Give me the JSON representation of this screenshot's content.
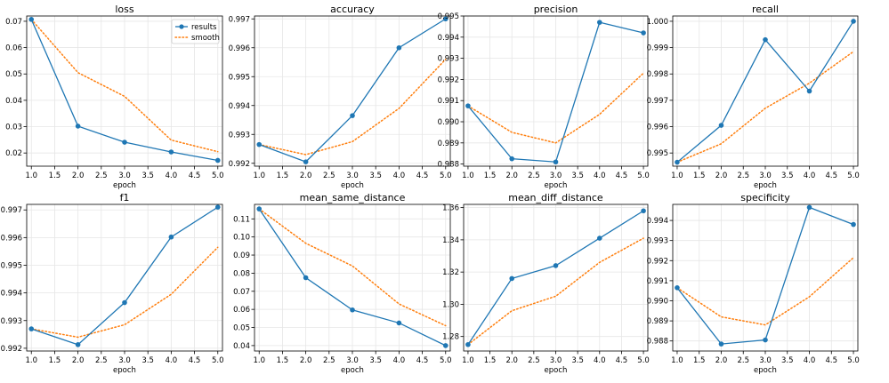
{
  "chart_data": [
    {
      "type": "line",
      "title": "loss",
      "xlabel": "epoch",
      "x": [
        1,
        2,
        3,
        4,
        5
      ],
      "xticks": [
        "1.0",
        "1.5",
        "2.0",
        "2.5",
        "3.0",
        "3.5",
        "4.0",
        "4.5",
        "5.0"
      ],
      "ylim": [
        0.015,
        0.072
      ],
      "yticks": [
        "0.02",
        "0.03",
        "0.04",
        "0.05",
        "0.06",
        "0.07"
      ],
      "legend": "top-right",
      "series": [
        {
          "name": "results",
          "values": [
            0.0707,
            0.0302,
            0.0241,
            0.0204,
            0.0172
          ]
        },
        {
          "name": "smooth",
          "values": [
            0.0707,
            0.0505,
            0.0415,
            0.0249,
            0.0205
          ]
        }
      ]
    },
    {
      "type": "line",
      "title": "accuracy",
      "xlabel": "epoch",
      "x": [
        1,
        2,
        3,
        4,
        5
      ],
      "xticks": [
        "1.0",
        "1.5",
        "2.0",
        "2.5",
        "3.0",
        "3.5",
        "4.0",
        "4.5",
        "5.0"
      ],
      "ylim": [
        0.9919,
        0.9971
      ],
      "yticks": [
        "0.992",
        "0.993",
        "0.994",
        "0.995",
        "0.996",
        "0.997"
      ],
      "series": [
        {
          "name": "results",
          "values": [
            0.99265,
            0.99205,
            0.99365,
            0.996,
            0.997
          ]
        },
        {
          "name": "smooth",
          "values": [
            0.99265,
            0.9923,
            0.99275,
            0.9939,
            0.9956
          ]
        }
      ]
    },
    {
      "type": "line",
      "title": "precision",
      "xlabel": "epoch",
      "x": [
        1,
        2,
        3,
        4,
        5
      ],
      "xticks": [
        "1.0",
        "1.5",
        "2.0",
        "2.5",
        "3.0",
        "3.5",
        "4.0",
        "4.5",
        "5.0"
      ],
      "ylim": [
        0.9879,
        0.995
      ],
      "yticks": [
        "0.988",
        "0.989",
        "0.990",
        "0.991",
        "0.992",
        "0.993",
        "0.994",
        "0.995"
      ],
      "series": [
        {
          "name": "results",
          "values": [
            0.99075,
            0.98825,
            0.9881,
            0.9947,
            0.9942
          ]
        },
        {
          "name": "smooth",
          "values": [
            0.99075,
            0.9895,
            0.989,
            0.99035,
            0.9923
          ]
        }
      ]
    },
    {
      "type": "line",
      "title": "recall",
      "xlabel": "epoch",
      "x": [
        1,
        2,
        3,
        4,
        5
      ],
      "xticks": [
        "1.0",
        "1.5",
        "2.0",
        "2.5",
        "3.0",
        "3.5",
        "4.0",
        "4.5",
        "5.0"
      ],
      "ylim": [
        0.9945,
        1.0002
      ],
      "yticks": [
        "0.995",
        "0.996",
        "0.997",
        "0.998",
        "0.999",
        "1.000"
      ],
      "series": [
        {
          "name": "results",
          "values": [
            0.99465,
            0.99605,
            0.9993,
            0.99735,
            1.0
          ]
        },
        {
          "name": "smooth",
          "values": [
            0.99465,
            0.99535,
            0.9967,
            0.99765,
            0.99885
          ]
        }
      ]
    },
    {
      "type": "line",
      "title": "f1",
      "xlabel": "epoch",
      "x": [
        1,
        2,
        3,
        4,
        5
      ],
      "xticks": [
        "1.0",
        "1.5",
        "2.0",
        "2.5",
        "3.0",
        "3.5",
        "4.0",
        "4.5",
        "5.0"
      ],
      "ylim": [
        0.9919,
        0.9972
      ],
      "yticks": [
        "0.992",
        "0.993",
        "0.994",
        "0.995",
        "0.996",
        "0.997"
      ],
      "series": [
        {
          "name": "results",
          "values": [
            0.9927,
            0.99213,
            0.99365,
            0.99602,
            0.9971
          ]
        },
        {
          "name": "smooth",
          "values": [
            0.9927,
            0.9924,
            0.99285,
            0.99395,
            0.99565
          ]
        }
      ]
    },
    {
      "type": "line",
      "title": "mean_same_distance",
      "xlabel": "epoch",
      "x": [
        1,
        2,
        3,
        4,
        5
      ],
      "xticks": [
        "1.0",
        "1.5",
        "2.0",
        "2.5",
        "3.0",
        "3.5",
        "4.0",
        "4.5",
        "5.0"
      ],
      "ylim": [
        0.037,
        0.118
      ],
      "yticks": [
        "0.04",
        "0.05",
        "0.06",
        "0.07",
        "0.08",
        "0.09",
        "0.10",
        "0.11"
      ],
      "series": [
        {
          "name": "results",
          "values": [
            0.1155,
            0.0775,
            0.0597,
            0.0525,
            0.04
          ]
        },
        {
          "name": "smooth",
          "values": [
            0.1155,
            0.0965,
            0.084,
            0.063,
            0.051
          ]
        }
      ]
    },
    {
      "type": "line",
      "title": "mean_diff_distance",
      "xlabel": "epoch",
      "x": [
        1,
        2,
        3,
        4,
        5
      ],
      "xticks": [
        "1.0",
        "1.5",
        "2.0",
        "2.5",
        "3.0",
        "3.5",
        "4.0",
        "4.5",
        "5.0"
      ],
      "ylim": [
        1.271,
        1.362
      ],
      "yticks": [
        "1.28",
        "1.30",
        "1.32",
        "1.34",
        "1.36"
      ],
      "series": [
        {
          "name": "results",
          "values": [
            1.275,
            1.316,
            1.324,
            1.341,
            1.358
          ]
        },
        {
          "name": "smooth",
          "values": [
            1.275,
            1.296,
            1.305,
            1.326,
            1.341
          ]
        }
      ]
    },
    {
      "type": "line",
      "title": "specificity",
      "xlabel": "epoch",
      "x": [
        1,
        2,
        3,
        4,
        5
      ],
      "xticks": [
        "1.0",
        "1.5",
        "2.0",
        "2.5",
        "3.0",
        "3.5",
        "4.0",
        "4.5",
        "5.0"
      ],
      "ylim": [
        0.9875,
        0.9948
      ],
      "yticks": [
        "0.988",
        "0.989",
        "0.990",
        "0.991",
        "0.992",
        "0.993",
        "0.994"
      ],
      "series": [
        {
          "name": "results",
          "values": [
            0.99065,
            0.98785,
            0.98805,
            0.99465,
            0.9938
          ]
        },
        {
          "name": "smooth",
          "values": [
            0.99065,
            0.9892,
            0.9888,
            0.9902,
            0.99215
          ]
        }
      ]
    }
  ],
  "colors": {
    "results": "#1f77b4",
    "smooth": "#ff7f0e",
    "grid": "#e6e6e6",
    "axis": "#000000"
  }
}
